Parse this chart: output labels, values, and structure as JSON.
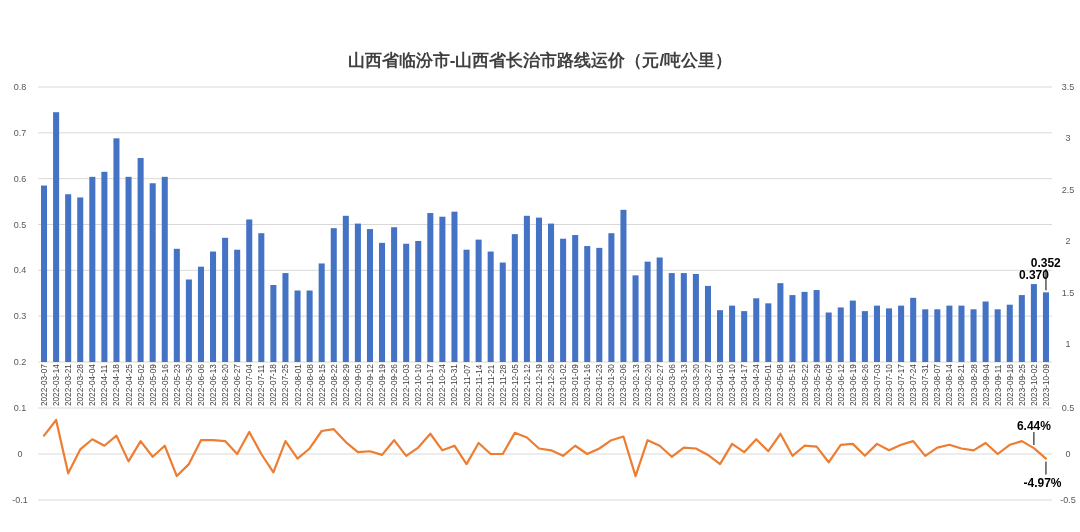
{
  "chart_data": [
    {
      "type": "bar",
      "title": "山西省临汾市-山西省长治市路线运价（元/吨公里）",
      "categories": [
        "2022-03-07",
        "2022-03-14",
        "2022-03-21",
        "2022-03-28",
        "2022-04-04",
        "2022-04-11",
        "2022-04-18",
        "2022-04-25",
        "2022-05-02",
        "2022-05-09",
        "2022-05-16",
        "2022-05-23",
        "2022-05-30",
        "2022-06-06",
        "2022-06-13",
        "2022-06-20",
        "2022-06-27",
        "2022-07-04",
        "2022-07-11",
        "2022-07-18",
        "2022-07-25",
        "2022-08-01",
        "2022-08-08",
        "2022-08-15",
        "2022-08-22",
        "2022-08-29",
        "2022-09-05",
        "2022-09-12",
        "2022-09-19",
        "2022-09-26",
        "2022-10-03",
        "2022-10-10",
        "2022-10-17",
        "2022-10-24",
        "2022-10-31",
        "2022-11-07",
        "2022-11-14",
        "2022-11-21",
        "2022-11-28",
        "2022-12-05",
        "2022-12-12",
        "2022-12-19",
        "2022-12-26",
        "2023-01-02",
        "2023-01-09",
        "2023-01-16",
        "2023-01-23",
        "2023-01-30",
        "2023-02-06",
        "2023-02-13",
        "2023-02-20",
        "2023-02-27",
        "2023-03-06",
        "2023-03-13",
        "2023-03-20",
        "2023-03-27",
        "2023-04-03",
        "2023-04-10",
        "2023-04-17",
        "2023-04-24",
        "2023-05-01",
        "2023-05-08",
        "2023-05-15",
        "2023-05-22",
        "2023-05-29",
        "2023-06-05",
        "2023-06-12",
        "2023-06-19",
        "2023-06-26",
        "2023-07-03",
        "2023-07-10",
        "2023-07-17",
        "2023-07-24",
        "2023-07-31",
        "2023-08-07",
        "2023-08-14",
        "2023-08-21",
        "2023-08-28",
        "2023-09-04",
        "2023-09-11",
        "2023-09-18",
        "2023-09-25",
        "2023-10-02",
        "2023-10-09"
      ],
      "values": [
        0.585,
        0.745,
        0.566,
        0.559,
        0.604,
        0.615,
        0.688,
        0.604,
        0.645,
        0.59,
        0.604,
        0.447,
        0.38,
        0.408,
        0.441,
        0.471,
        0.445,
        0.511,
        0.481,
        0.368,
        0.394,
        0.356,
        0.356,
        0.415,
        0.492,
        0.519,
        0.502,
        0.49,
        0.46,
        0.494,
        0.458,
        0.464,
        0.525,
        0.517,
        0.528,
        0.445,
        0.467,
        0.441,
        0.417,
        0.479,
        0.519,
        0.515,
        0.502,
        0.469,
        0.477,
        0.453,
        0.449,
        0.481,
        0.532,
        0.389,
        0.419,
        0.428,
        0.394,
        0.394,
        0.392,
        0.366,
        0.313,
        0.323,
        0.311,
        0.339,
        0.328,
        0.372,
        0.346,
        0.353,
        0.357,
        0.308,
        0.319,
        0.334,
        0.311,
        0.323,
        0.317,
        0.323,
        0.34,
        0.315,
        0.315,
        0.323,
        0.323,
        0.315,
        0.332,
        0.315,
        0.325,
        0.346,
        0.37,
        0.352
      ],
      "value_labels": [
        null,
        null,
        null,
        null,
        null,
        null,
        null,
        null,
        null,
        null,
        null,
        null,
        null,
        null,
        null,
        null,
        null,
        null,
        null,
        null,
        null,
        null,
        null,
        null,
        null,
        null,
        null,
        null,
        null,
        null,
        null,
        null,
        null,
        null,
        null,
        null,
        null,
        null,
        null,
        null,
        null,
        null,
        null,
        null,
        null,
        null,
        null,
        null,
        null,
        null,
        null,
        null,
        null,
        null,
        null,
        null,
        null,
        null,
        null,
        null,
        null,
        null,
        null,
        null,
        null,
        null,
        null,
        null,
        null,
        null,
        null,
        null,
        null,
        null,
        null,
        null,
        null,
        null,
        null,
        null,
        null,
        null,
        "0.370",
        "0.352"
      ],
      "color": "#4472c4",
      "ylim": [
        0.2,
        0.8
      ],
      "yticks": [
        0.2,
        0.3,
        0.4,
        0.5,
        0.6,
        0.7,
        0.8
      ],
      "y2lim": [
        0.825,
        3.5
      ],
      "y2ticks": [
        1,
        1.5,
        2,
        2.5,
        3,
        3.5
      ],
      "grid": "y"
    },
    {
      "type": "line",
      "categories": [
        null,
        null,
        null,
        null,
        null,
        null,
        null,
        null,
        null,
        null,
        null,
        null,
        null,
        null,
        null,
        null,
        null,
        null,
        null,
        null,
        null,
        null,
        null,
        null,
        null,
        null,
        null,
        null,
        null,
        null,
        null,
        null,
        null,
        null,
        null,
        null,
        null,
        null,
        null,
        null,
        null,
        null,
        null,
        null,
        null,
        null,
        null,
        null,
        null,
        null,
        null,
        null,
        null,
        null,
        null,
        null,
        null,
        null,
        null,
        null,
        null,
        null,
        null,
        null,
        null,
        null,
        null,
        null,
        null,
        null,
        null,
        null,
        null,
        null,
        null,
        null,
        null,
        null,
        null,
        null,
        null,
        null,
        null,
        null
      ],
      "series": [
        {
          "color": "#ed7d31",
          "axis": "y2",
          "values": [
            0.2,
            0.37,
            -0.21,
            0.05,
            0.16,
            0.09,
            0.2,
            -0.08,
            0.14,
            -0.03,
            0.09,
            -0.24,
            -0.11,
            0.15,
            0.15,
            0.14,
            0,
            0.24,
            0,
            -0.2,
            0.14,
            -0.05,
            0.06,
            0.25,
            0.27,
            0.13,
            0.02,
            0.03,
            -0.01,
            0.15,
            -0.02,
            0.07,
            0.22,
            0.04,
            0.09,
            -0.11,
            0.12,
            0,
            0,
            0.23,
            0.18,
            0.06,
            0.04,
            -0.02,
            0.09,
            0,
            0.06,
            0.15,
            0.19,
            -0.24,
            0.15,
            0.09,
            -0.03,
            0.07,
            0.06,
            -0.01,
            -0.11,
            0.11,
            0.02,
            0.16,
            0.03,
            0.22,
            -0.02,
            0.09,
            0.08,
            -0.09,
            0.1,
            0.11,
            -0.02,
            0.11,
            0.04,
            0.1,
            0.14,
            -0.02,
            0.07,
            0.1,
            0.06,
            0.04,
            0.12,
            0,
            0.1,
            0.14,
            0.0644,
            -0.0497
          ],
          "value_labels": [
            null,
            null,
            null,
            null,
            null,
            null,
            null,
            null,
            null,
            null,
            null,
            null,
            null,
            null,
            null,
            null,
            null,
            null,
            null,
            null,
            null,
            null,
            null,
            null,
            null,
            null,
            null,
            null,
            null,
            null,
            null,
            null,
            null,
            null,
            null,
            null,
            null,
            null,
            null,
            null,
            null,
            null,
            null,
            null,
            null,
            null,
            null,
            null,
            null,
            null,
            null,
            null,
            null,
            null,
            null,
            null,
            null,
            null,
            null,
            null,
            null,
            null,
            null,
            null,
            null,
            null,
            null,
            null,
            null,
            null,
            null,
            null,
            null,
            null,
            null,
            null,
            null,
            null,
            null,
            null,
            null,
            null,
            "6.44%",
            "-4.97%"
          ]
        }
      ],
      "ylim": [
        -0.1,
        0.1
      ],
      "yticks": [
        -0.1,
        0,
        0.1
      ],
      "y2lim": [
        -0.5,
        0.5
      ],
      "y2ticks": [
        -0.5,
        0,
        0.5
      ],
      "grid": "y"
    }
  ]
}
